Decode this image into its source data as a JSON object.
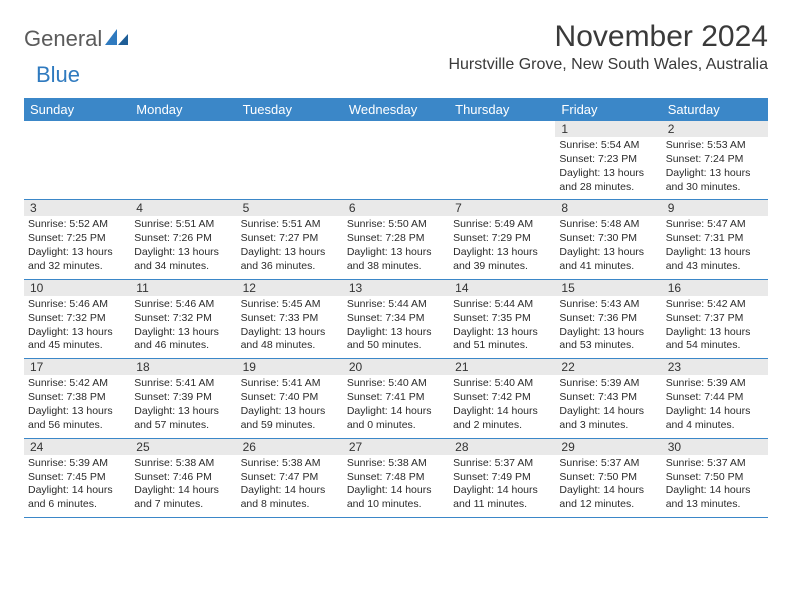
{
  "brand": {
    "general": "General",
    "blue": "Blue"
  },
  "title": "November 2024",
  "location": "Hurstville Grove, New South Wales, Australia",
  "colors": {
    "header_bar": "#3b87c8",
    "header_text": "#ffffff",
    "daynum_bg": "#e9e9e9",
    "week_divider": "#3b87c8",
    "logo_blue": "#2f7abf",
    "logo_grey": "#5b5b5b",
    "body_text": "#2b2b2b"
  },
  "layout": {
    "columns": 7,
    "rows": 5,
    "title_fontsize": 30,
    "location_fontsize": 16,
    "weekday_fontsize": 13,
    "daynum_fontsize": 12,
    "detail_fontsize": 10.5
  },
  "weekdays": [
    "Sunday",
    "Monday",
    "Tuesday",
    "Wednesday",
    "Thursday",
    "Friday",
    "Saturday"
  ],
  "weeks": [
    [
      {
        "n": "",
        "sr": "",
        "ss": "",
        "dl": ""
      },
      {
        "n": "",
        "sr": "",
        "ss": "",
        "dl": ""
      },
      {
        "n": "",
        "sr": "",
        "ss": "",
        "dl": ""
      },
      {
        "n": "",
        "sr": "",
        "ss": "",
        "dl": ""
      },
      {
        "n": "",
        "sr": "",
        "ss": "",
        "dl": ""
      },
      {
        "n": "1",
        "sr": "Sunrise: 5:54 AM",
        "ss": "Sunset: 7:23 PM",
        "dl": "Daylight: 13 hours and 28 minutes."
      },
      {
        "n": "2",
        "sr": "Sunrise: 5:53 AM",
        "ss": "Sunset: 7:24 PM",
        "dl": "Daylight: 13 hours and 30 minutes."
      }
    ],
    [
      {
        "n": "3",
        "sr": "Sunrise: 5:52 AM",
        "ss": "Sunset: 7:25 PM",
        "dl": "Daylight: 13 hours and 32 minutes."
      },
      {
        "n": "4",
        "sr": "Sunrise: 5:51 AM",
        "ss": "Sunset: 7:26 PM",
        "dl": "Daylight: 13 hours and 34 minutes."
      },
      {
        "n": "5",
        "sr": "Sunrise: 5:51 AM",
        "ss": "Sunset: 7:27 PM",
        "dl": "Daylight: 13 hours and 36 minutes."
      },
      {
        "n": "6",
        "sr": "Sunrise: 5:50 AM",
        "ss": "Sunset: 7:28 PM",
        "dl": "Daylight: 13 hours and 38 minutes."
      },
      {
        "n": "7",
        "sr": "Sunrise: 5:49 AM",
        "ss": "Sunset: 7:29 PM",
        "dl": "Daylight: 13 hours and 39 minutes."
      },
      {
        "n": "8",
        "sr": "Sunrise: 5:48 AM",
        "ss": "Sunset: 7:30 PM",
        "dl": "Daylight: 13 hours and 41 minutes."
      },
      {
        "n": "9",
        "sr": "Sunrise: 5:47 AM",
        "ss": "Sunset: 7:31 PM",
        "dl": "Daylight: 13 hours and 43 minutes."
      }
    ],
    [
      {
        "n": "10",
        "sr": "Sunrise: 5:46 AM",
        "ss": "Sunset: 7:32 PM",
        "dl": "Daylight: 13 hours and 45 minutes."
      },
      {
        "n": "11",
        "sr": "Sunrise: 5:46 AM",
        "ss": "Sunset: 7:32 PM",
        "dl": "Daylight: 13 hours and 46 minutes."
      },
      {
        "n": "12",
        "sr": "Sunrise: 5:45 AM",
        "ss": "Sunset: 7:33 PM",
        "dl": "Daylight: 13 hours and 48 minutes."
      },
      {
        "n": "13",
        "sr": "Sunrise: 5:44 AM",
        "ss": "Sunset: 7:34 PM",
        "dl": "Daylight: 13 hours and 50 minutes."
      },
      {
        "n": "14",
        "sr": "Sunrise: 5:44 AM",
        "ss": "Sunset: 7:35 PM",
        "dl": "Daylight: 13 hours and 51 minutes."
      },
      {
        "n": "15",
        "sr": "Sunrise: 5:43 AM",
        "ss": "Sunset: 7:36 PM",
        "dl": "Daylight: 13 hours and 53 minutes."
      },
      {
        "n": "16",
        "sr": "Sunrise: 5:42 AM",
        "ss": "Sunset: 7:37 PM",
        "dl": "Daylight: 13 hours and 54 minutes."
      }
    ],
    [
      {
        "n": "17",
        "sr": "Sunrise: 5:42 AM",
        "ss": "Sunset: 7:38 PM",
        "dl": "Daylight: 13 hours and 56 minutes."
      },
      {
        "n": "18",
        "sr": "Sunrise: 5:41 AM",
        "ss": "Sunset: 7:39 PM",
        "dl": "Daylight: 13 hours and 57 minutes."
      },
      {
        "n": "19",
        "sr": "Sunrise: 5:41 AM",
        "ss": "Sunset: 7:40 PM",
        "dl": "Daylight: 13 hours and 59 minutes."
      },
      {
        "n": "20",
        "sr": "Sunrise: 5:40 AM",
        "ss": "Sunset: 7:41 PM",
        "dl": "Daylight: 14 hours and 0 minutes."
      },
      {
        "n": "21",
        "sr": "Sunrise: 5:40 AM",
        "ss": "Sunset: 7:42 PM",
        "dl": "Daylight: 14 hours and 2 minutes."
      },
      {
        "n": "22",
        "sr": "Sunrise: 5:39 AM",
        "ss": "Sunset: 7:43 PM",
        "dl": "Daylight: 14 hours and 3 minutes."
      },
      {
        "n": "23",
        "sr": "Sunrise: 5:39 AM",
        "ss": "Sunset: 7:44 PM",
        "dl": "Daylight: 14 hours and 4 minutes."
      }
    ],
    [
      {
        "n": "24",
        "sr": "Sunrise: 5:39 AM",
        "ss": "Sunset: 7:45 PM",
        "dl": "Daylight: 14 hours and 6 minutes."
      },
      {
        "n": "25",
        "sr": "Sunrise: 5:38 AM",
        "ss": "Sunset: 7:46 PM",
        "dl": "Daylight: 14 hours and 7 minutes."
      },
      {
        "n": "26",
        "sr": "Sunrise: 5:38 AM",
        "ss": "Sunset: 7:47 PM",
        "dl": "Daylight: 14 hours and 8 minutes."
      },
      {
        "n": "27",
        "sr": "Sunrise: 5:38 AM",
        "ss": "Sunset: 7:48 PM",
        "dl": "Daylight: 14 hours and 10 minutes."
      },
      {
        "n": "28",
        "sr": "Sunrise: 5:37 AM",
        "ss": "Sunset: 7:49 PM",
        "dl": "Daylight: 14 hours and 11 minutes."
      },
      {
        "n": "29",
        "sr": "Sunrise: 5:37 AM",
        "ss": "Sunset: 7:50 PM",
        "dl": "Daylight: 14 hours and 12 minutes."
      },
      {
        "n": "30",
        "sr": "Sunrise: 5:37 AM",
        "ss": "Sunset: 7:50 PM",
        "dl": "Daylight: 14 hours and 13 minutes."
      }
    ]
  ]
}
